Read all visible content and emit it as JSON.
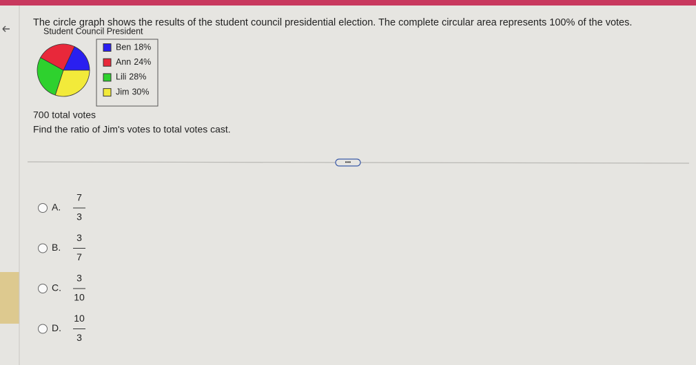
{
  "question": {
    "text": "The circle graph shows the results of the student council presidential election. The complete circular area represents 100% of the votes.",
    "total": "700 total votes",
    "prompt": "Find the ratio of Jim's votes to total votes cast."
  },
  "chart_data": {
    "type": "pie",
    "title": "Student Council President",
    "categories": [
      "Ben",
      "Ann",
      "Lili",
      "Jim"
    ],
    "values": [
      18,
      24,
      28,
      30
    ],
    "value_labels": [
      "18%",
      "24%",
      "28%",
      "30%"
    ],
    "colors": [
      "#2a1ff0",
      "#e8283a",
      "#2ed12e",
      "#f2ea3a"
    ]
  },
  "options": [
    {
      "letter": "A.",
      "numerator": 7,
      "denominator": 3
    },
    {
      "letter": "B.",
      "numerator": 3,
      "denominator": 7
    },
    {
      "letter": "C.",
      "numerator": 3,
      "denominator": 10
    },
    {
      "letter": "D.",
      "numerator": 10,
      "denominator": 3
    }
  ]
}
